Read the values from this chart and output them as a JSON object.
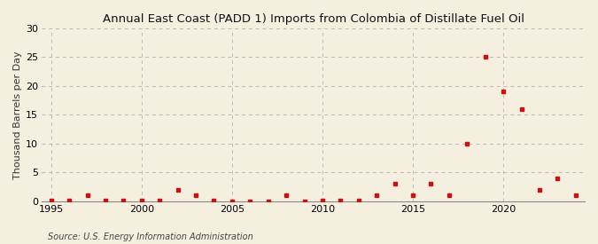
{
  "title": "Annual East Coast (PADD 1) Imports from Colombia of Distillate Fuel Oil",
  "ylabel": "Thousand Barrels per Day",
  "source": "Source: U.S. Energy Information Administration",
  "background_color": "#f5efe0",
  "marker_color": "#cc1111",
  "years": [
    1995,
    1996,
    1997,
    1998,
    1999,
    2000,
    2001,
    2002,
    2003,
    2004,
    2005,
    2006,
    2007,
    2008,
    2009,
    2010,
    2011,
    2012,
    2013,
    2014,
    2015,
    2016,
    2017,
    2018,
    2019,
    2020,
    2021,
    2022,
    2023,
    2024
  ],
  "values": [
    0.03,
    0.03,
    1.0,
    0.03,
    0.03,
    0.03,
    0.03,
    2.0,
    1.0,
    0.03,
    0.0,
    0.0,
    0.0,
    1.0,
    0.0,
    0.03,
    0.03,
    0.03,
    1.0,
    3.0,
    1.0,
    3.0,
    1.0,
    10.0,
    25.0,
    19.0,
    16.0,
    2.0,
    4.0,
    1.0
  ],
  "ylim": [
    0,
    30
  ],
  "yticks": [
    0,
    5,
    10,
    15,
    20,
    25,
    30
  ],
  "xlim": [
    1994.5,
    2024.5
  ],
  "xticks": [
    1995,
    2000,
    2005,
    2010,
    2015,
    2020
  ],
  "grid_color": "#bbbbbb",
  "title_fontsize": 9.5,
  "label_fontsize": 8,
  "tick_fontsize": 8,
  "source_fontsize": 7
}
